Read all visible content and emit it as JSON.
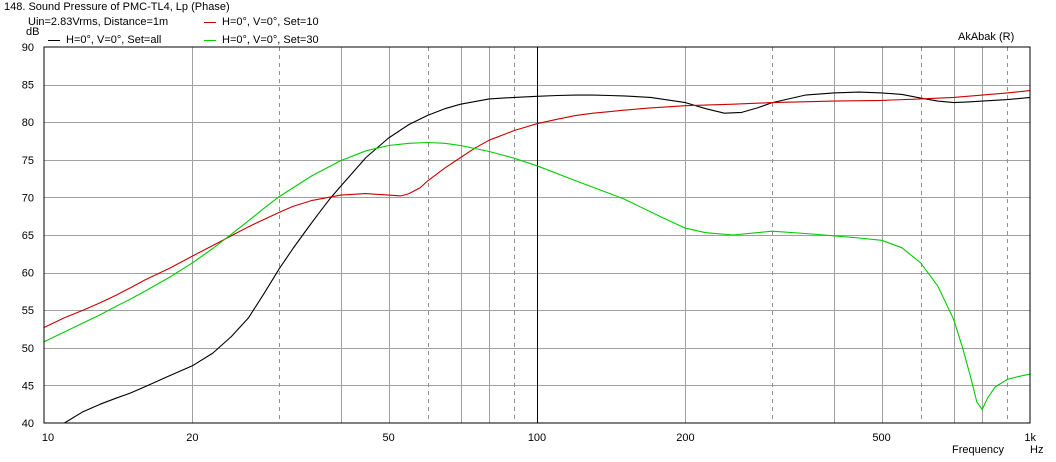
{
  "chart_data": {
    "type": "line",
    "title": "148. Sound Pressure of PMC-TL4, Lp (Phase)",
    "subtitle": "Uin=2.83Vrms, Distance=1m",
    "watermark": "AkAbak (R)",
    "xlabel": "Frequency",
    "xunit": "Hz",
    "ylabel": "dB",
    "x_scale": "log",
    "xlim": [
      10,
      1000
    ],
    "ylim": [
      40,
      90
    ],
    "grid": true,
    "legend_position": "top-left",
    "x_ticks": [
      {
        "value": 10,
        "label": "10"
      },
      {
        "value": 20,
        "label": "20"
      },
      {
        "value": 50,
        "label": "50"
      },
      {
        "value": 100,
        "label": "100"
      },
      {
        "value": 200,
        "label": "200"
      },
      {
        "value": 500,
        "label": "500"
      },
      {
        "value": 1000,
        "label": "1k"
      }
    ],
    "y_ticks": [
      {
        "value": 40,
        "label": "40"
      },
      {
        "value": 45,
        "label": "45"
      },
      {
        "value": 50,
        "label": "50"
      },
      {
        "value": 55,
        "label": "55"
      },
      {
        "value": 60,
        "label": "60"
      },
      {
        "value": 65,
        "label": "65"
      },
      {
        "value": 70,
        "label": "70"
      },
      {
        "value": 75,
        "label": "75"
      },
      {
        "value": 80,
        "label": "80"
      },
      {
        "value": 85,
        "label": "85"
      },
      {
        "value": 90,
        "label": "90"
      }
    ],
    "series": [
      {
        "name": "H=0°, V=0°, Set=all",
        "color": "#000000",
        "x": [
          10,
          11,
          12,
          13,
          14,
          15,
          16,
          18,
          20,
          22,
          24,
          26,
          28,
          30,
          32,
          34,
          36,
          38,
          40,
          45,
          50,
          55,
          60,
          65,
          70,
          80,
          90,
          100,
          110,
          120,
          130,
          140,
          150,
          170,
          200,
          220,
          240,
          260,
          280,
          300,
          350,
          400,
          450,
          500,
          550,
          600,
          650,
          700,
          750,
          800,
          900,
          1000
        ],
        "y": [
          39.6,
          40.0,
          41.5,
          42.5,
          43.3,
          44.0,
          44.8,
          46.3,
          47.6,
          49.3,
          51.5,
          54.0,
          57.3,
          60.5,
          63.2,
          65.6,
          67.8,
          69.8,
          71.5,
          75.3,
          77.9,
          79.7,
          80.9,
          81.8,
          82.4,
          83.1,
          83.3,
          83.45,
          83.55,
          83.6,
          83.6,
          83.55,
          83.5,
          83.3,
          82.6,
          81.8,
          81.2,
          81.3,
          81.9,
          82.6,
          83.6,
          83.9,
          84.0,
          83.9,
          83.7,
          83.2,
          82.8,
          82.6,
          82.7,
          82.8,
          83.0,
          83.3
        ]
      },
      {
        "name": "H=0°, V=0°, Set=10",
        "color": "#cc0000",
        "x": [
          10,
          11,
          12,
          13,
          14,
          15,
          16,
          18,
          20,
          22,
          24,
          26,
          28,
          30,
          32,
          35,
          40,
          45,
          50,
          53,
          55,
          58,
          60,
          65,
          70,
          75,
          80,
          90,
          100,
          110,
          120,
          130,
          140,
          150,
          170,
          200,
          250,
          300,
          400,
          500,
          600,
          700,
          800,
          900,
          1000
        ],
        "y": [
          52.7,
          54.0,
          55.0,
          56.0,
          57.0,
          58.0,
          59.0,
          60.6,
          62.2,
          63.6,
          64.9,
          66.1,
          67.1,
          68.0,
          68.8,
          69.6,
          70.3,
          70.5,
          70.3,
          70.2,
          70.5,
          71.3,
          72.2,
          73.9,
          75.3,
          76.6,
          77.6,
          78.9,
          79.8,
          80.4,
          80.9,
          81.2,
          81.4,
          81.6,
          81.9,
          82.2,
          82.4,
          82.6,
          82.8,
          82.9,
          83.1,
          83.3,
          83.6,
          83.9,
          84.2
        ]
      },
      {
        "name": "H=0°, V=0°, Set=30",
        "color": "#00cc00",
        "x": [
          10,
          11,
          12,
          13,
          14,
          15,
          16,
          18,
          20,
          22,
          24,
          26,
          28,
          30,
          35,
          40,
          45,
          50,
          55,
          60,
          65,
          70,
          80,
          90,
          100,
          120,
          150,
          180,
          200,
          220,
          250,
          300,
          350,
          400,
          450,
          500,
          550,
          600,
          650,
          700,
          730,
          760,
          780,
          800,
          820,
          850,
          900,
          950,
          1000
        ],
        "y": [
          50.8,
          52.1,
          53.3,
          54.4,
          55.5,
          56.5,
          57.5,
          59.4,
          61.3,
          63.2,
          65.1,
          66.9,
          68.6,
          70.1,
          72.9,
          74.9,
          76.2,
          76.9,
          77.2,
          77.3,
          77.2,
          76.9,
          76.1,
          75.2,
          74.2,
          72.2,
          69.8,
          67.3,
          65.9,
          65.3,
          65.0,
          65.5,
          65.2,
          64.9,
          64.6,
          64.3,
          63.3,
          61.3,
          58.2,
          53.8,
          50.0,
          45.8,
          42.8,
          41.8,
          43.3,
          44.8,
          45.8,
          46.2,
          46.5
        ]
      }
    ]
  }
}
